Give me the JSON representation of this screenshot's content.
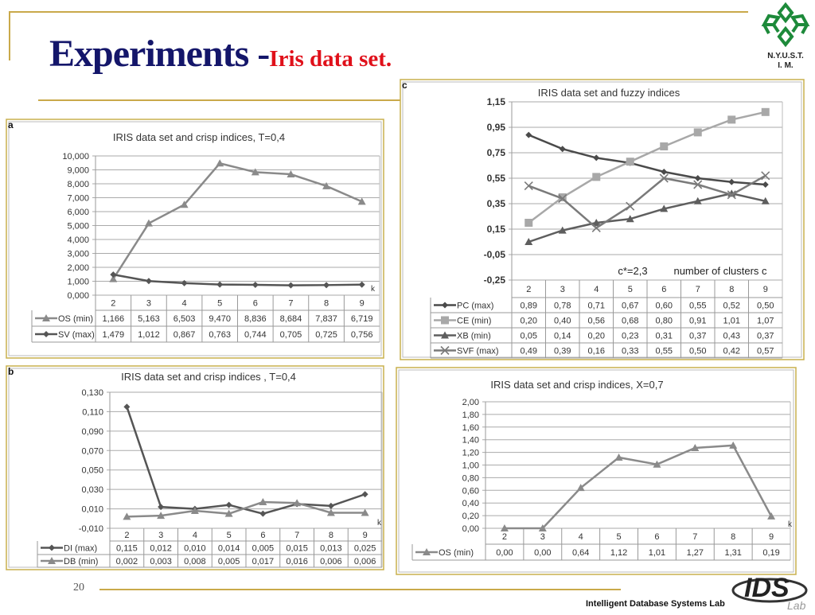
{
  "slide": {
    "title_main": "Experiments -",
    "title_sub": "Iris data set.",
    "logo_text_1": "N.Y.U.S.T.",
    "logo_text_2": "I. M.",
    "page_number": "20",
    "footer": "Intelligent Database Systems Lab",
    "lab_logo": "IDS Lab",
    "accent_color": "#c9a94a"
  },
  "chart_data": [
    {
      "id": "a",
      "panel_label": "a",
      "type": "line",
      "title": "IRIS data set and crisp indices, T=0,4",
      "xlabel": "k",
      "categories": [
        "2",
        "3",
        "4",
        "5",
        "6",
        "7",
        "8",
        "9"
      ],
      "ylim": [
        0,
        10
      ],
      "y_ticks": [
        "0,000",
        "1,000",
        "2,000",
        "3,000",
        "4,000",
        "5,000",
        "6,000",
        "7,000",
        "8,000",
        "9,000",
        "10,000"
      ],
      "grid": true,
      "legend": "table-bottom",
      "series": [
        {
          "name": "OS (min)",
          "marker": "triangle",
          "color": "#8a8a8a",
          "values": [
            1.166,
            5.163,
            6.503,
            9.47,
            8.836,
            8.684,
            7.837,
            6.719
          ],
          "labels": [
            "1,166",
            "5,163",
            "6,503",
            "9,470",
            "8,836",
            "8,684",
            "7,837",
            "6,719"
          ]
        },
        {
          "name": "SV (max)",
          "marker": "diamond",
          "color": "#555555",
          "values": [
            1.479,
            1.012,
            0.867,
            0.763,
            0.744,
            0.705,
            0.725,
            0.756
          ],
          "labels": [
            "1,479",
            "1,012",
            "0,867",
            "0,763",
            "0,744",
            "0,705",
            "0,725",
            "0,756"
          ]
        }
      ]
    },
    {
      "id": "b",
      "panel_label": "b",
      "type": "line",
      "title": "IRIS data set and crisp indices , T=0,4",
      "xlabel": "k",
      "categories": [
        "2",
        "3",
        "4",
        "5",
        "6",
        "7",
        "8",
        "9"
      ],
      "ylim": [
        -0.01,
        0.13
      ],
      "y_ticks": [
        "-0,010",
        "0,010",
        "0,030",
        "0,050",
        "0,070",
        "0,090",
        "0,110",
        "0,130"
      ],
      "grid": true,
      "legend": "table-bottom",
      "series": [
        {
          "name": "DI (max)",
          "marker": "diamond",
          "color": "#555555",
          "values": [
            0.115,
            0.012,
            0.01,
            0.014,
            0.005,
            0.015,
            0.013,
            0.025
          ],
          "labels": [
            "0,115",
            "0,012",
            "0,010",
            "0,014",
            "0,005",
            "0,015",
            "0,013",
            "0,025"
          ]
        },
        {
          "name": "DB  (min)",
          "marker": "triangle",
          "color": "#8a8a8a",
          "values": [
            0.002,
            0.003,
            0.008,
            0.005,
            0.017,
            0.016,
            0.006,
            0.006
          ],
          "labels": [
            "0,002",
            "0,003",
            "0,008",
            "0,005",
            "0,017",
            "0,016",
            "0,006",
            "0,006"
          ]
        }
      ]
    },
    {
      "id": "c",
      "panel_label": "c",
      "type": "line",
      "title": "IRIS data set and fuzzy indices",
      "xlabel": "number of clusters  c",
      "annotation": "c*=2,3",
      "categories": [
        "2",
        "3",
        "4",
        "5",
        "6",
        "7",
        "8",
        "9"
      ],
      "ylim": [
        -0.25,
        1.15
      ],
      "y_ticks": [
        "-0,25",
        "-0,05",
        "0,15",
        "0,35",
        "0,55",
        "0,75",
        "0,95",
        "1,15"
      ],
      "grid": true,
      "legend": "table-bottom",
      "series": [
        {
          "name": "PC (max)",
          "marker": "diamond",
          "color": "#4a4a4a",
          "values": [
            0.89,
            0.78,
            0.71,
            0.67,
            0.6,
            0.55,
            0.52,
            0.5
          ],
          "labels": [
            "0,89",
            "0,78",
            "0,71",
            "0,67",
            "0,60",
            "0,55",
            "0,52",
            "0,50"
          ]
        },
        {
          "name": "CE (min)",
          "marker": "square",
          "color": "#a8a8a8",
          "values": [
            0.2,
            0.4,
            0.56,
            0.68,
            0.8,
            0.91,
            1.01,
            1.07
          ],
          "labels": [
            "0,20",
            "0,40",
            "0,56",
            "0,68",
            "0,80",
            "0,91",
            "1,01",
            "1,07"
          ]
        },
        {
          "name": "XB (min)",
          "marker": "triangle",
          "color": "#5e5e5e",
          "values": [
            0.05,
            0.14,
            0.2,
            0.23,
            0.31,
            0.37,
            0.43,
            0.37
          ],
          "labels": [
            "0,05",
            "0,14",
            "0,20",
            "0,23",
            "0,31",
            "0,37",
            "0,43",
            "0,37"
          ]
        },
        {
          "name": "SVF (max)",
          "marker": "x",
          "color": "#7a7a7a",
          "values": [
            0.49,
            0.39,
            0.16,
            0.33,
            0.55,
            0.5,
            0.42,
            0.57
          ],
          "labels": [
            "0,49",
            "0,39",
            "0,16",
            "0,33",
            "0,55",
            "0,50",
            "0,42",
            "0,57"
          ]
        }
      ]
    },
    {
      "id": "d",
      "panel_label": "",
      "type": "line",
      "title": "IRIS data set and crisp indices, X=0,7",
      "xlabel": "k",
      "categories": [
        "2",
        "3",
        "4",
        "5",
        "6",
        "7",
        "8",
        "9"
      ],
      "ylim": [
        0,
        2
      ],
      "y_ticks": [
        "0,00",
        "0,20",
        "0,40",
        "0,60",
        "0,80",
        "1,00",
        "1,20",
        "1,40",
        "1,60",
        "1,80",
        "2,00"
      ],
      "grid": true,
      "legend": "table-bottom",
      "series": [
        {
          "name": "OS (min)",
          "marker": "triangle",
          "color": "#8a8a8a",
          "values": [
            0.0,
            0.0,
            0.64,
            1.12,
            1.01,
            1.27,
            1.31,
            0.19
          ],
          "labels": [
            "0,00",
            "0,00",
            "0,64",
            "1,12",
            "1,01",
            "1,27",
            "1,31",
            "0,19"
          ]
        }
      ]
    }
  ]
}
